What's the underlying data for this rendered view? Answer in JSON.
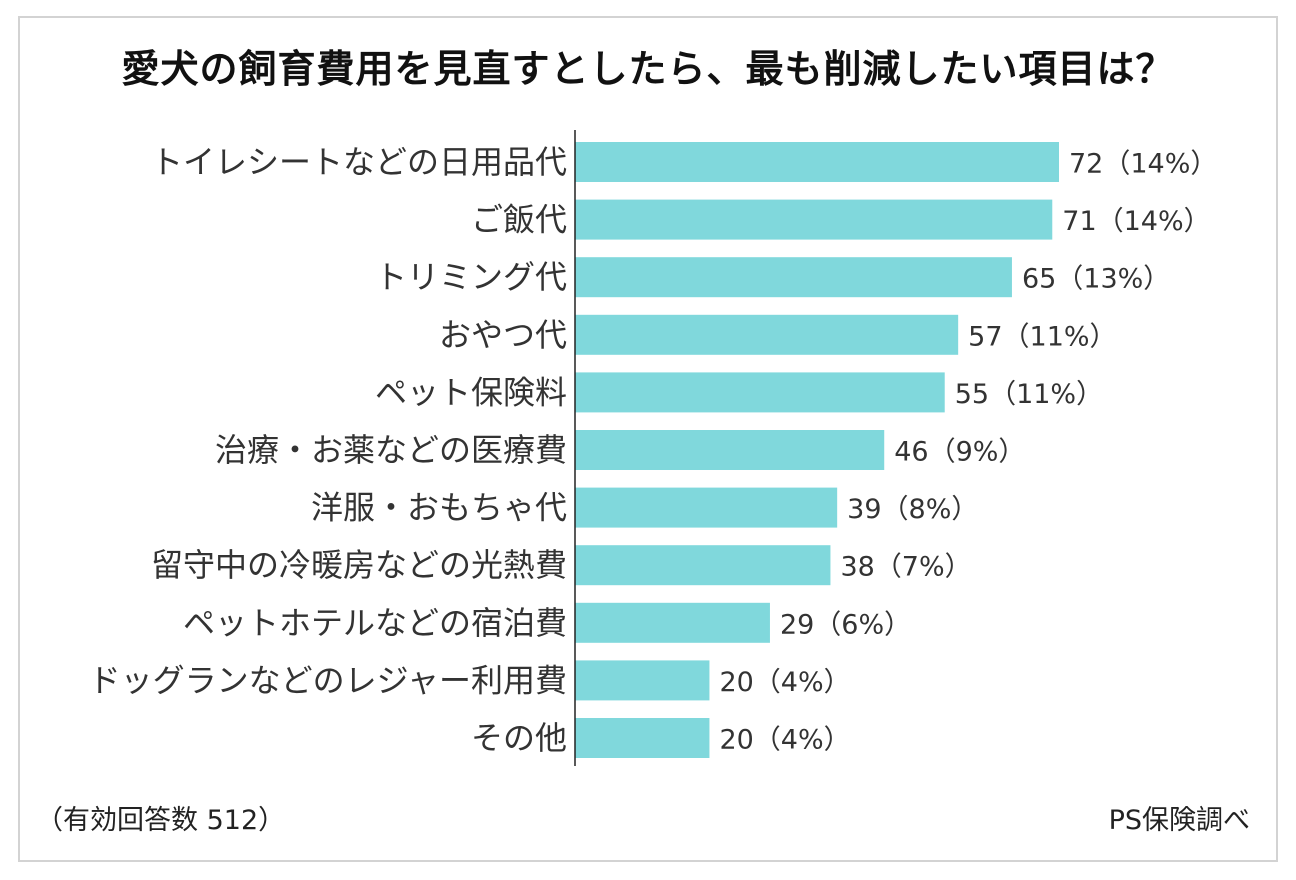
{
  "title": "愛犬の飼育費用を見直すとしたら、最も削減したい項目は？",
  "footnote": "（有効回答数 512）",
  "source": "PS保険調べ",
  "colors": {
    "bar": "#80d8dc",
    "axis": "#222222",
    "frame": "#d3d3d3"
  },
  "chart_data": {
    "type": "bar",
    "orientation": "horizontal",
    "categories": [
      "トイレシートなどの日用品代",
      "ご飯代",
      "トリミング代",
      "おやつ代",
      "ペット保険料",
      "治療・お薬などの医療費",
      "洋服・おもちゃ代",
      "留守中の冷暖房などの光熱費",
      "ペットホテルなどの宿泊費",
      "ドッグランなどのレジャー利用費",
      "その他"
    ],
    "values": [
      72,
      71,
      65,
      57,
      55,
      46,
      39,
      38,
      29,
      20,
      20
    ],
    "data_labels": [
      "72（14%）",
      "71（14%）",
      "65（13%）",
      "57（11%）",
      "55（11%）",
      "46（9%）",
      "39（8%）",
      "38（7%）",
      "29（6%）",
      "20（4%）",
      "20（4%）"
    ],
    "xlim": [
      0,
      72
    ],
    "grid": false,
    "legend": "none"
  }
}
